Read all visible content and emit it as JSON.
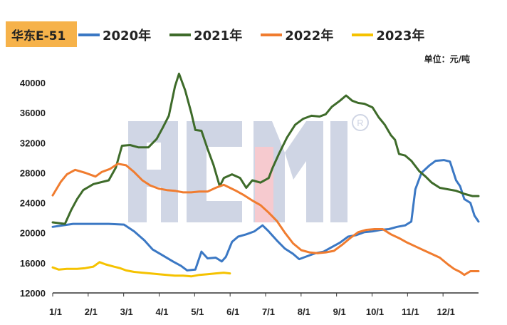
{
  "chart_data": {
    "type": "line",
    "title": "华东E-51",
    "unit_label": "单位：元/吨",
    "ylim": [
      12000,
      42000
    ],
    "yticks": [
      "40000",
      "36000",
      "32000",
      "28000",
      "24000",
      "20000",
      "16000",
      "12000"
    ],
    "xticks": [
      "1/1",
      "2/1",
      "3/1",
      "4/1",
      "5/1",
      "6/1",
      "7/1",
      "8/1",
      "9/1",
      "10/1",
      "11/1",
      "12/1"
    ],
    "watermark": "ACMI",
    "series": [
      {
        "name": "2020年",
        "color": "#3b78c4",
        "points": [
          [
            0,
            20800
          ],
          [
            20,
            21200
          ],
          [
            55,
            21200
          ],
          [
            70,
            21100
          ],
          [
            80,
            20200
          ],
          [
            90,
            19000
          ],
          [
            98,
            17800
          ],
          [
            108,
            17000
          ],
          [
            118,
            16200
          ],
          [
            126,
            15600
          ],
          [
            132,
            15000
          ],
          [
            140,
            15100
          ],
          [
            146,
            17500
          ],
          [
            152,
            16600
          ],
          [
            160,
            16700
          ],
          [
            166,
            16200
          ],
          [
            170,
            16800
          ],
          [
            176,
            18800
          ],
          [
            182,
            19500
          ],
          [
            190,
            19800
          ],
          [
            198,
            20200
          ],
          [
            206,
            21000
          ],
          [
            212,
            20200
          ],
          [
            220,
            19000
          ],
          [
            228,
            17900
          ],
          [
            236,
            17200
          ],
          [
            242,
            16500
          ],
          [
            250,
            16900
          ],
          [
            258,
            17300
          ],
          [
            266,
            17500
          ],
          [
            274,
            18100
          ],
          [
            282,
            18700
          ],
          [
            290,
            19500
          ],
          [
            298,
            19700
          ],
          [
            306,
            20100
          ],
          [
            314,
            20200
          ],
          [
            322,
            20400
          ],
          [
            330,
            20500
          ],
          [
            338,
            20800
          ],
          [
            346,
            21000
          ],
          [
            352,
            21500
          ],
          [
            356,
            25800
          ],
          [
            362,
            28000
          ],
          [
            370,
            29000
          ],
          [
            376,
            29600
          ],
          [
            384,
            29700
          ],
          [
            390,
            29500
          ],
          [
            396,
            27000
          ],
          [
            400,
            26200
          ],
          [
            404,
            24500
          ],
          [
            410,
            24000
          ],
          [
            414,
            22300
          ],
          [
            418,
            21500
          ]
        ]
      },
      {
        "name": "2021年",
        "color": "#3e6b2a",
        "points": [
          [
            0,
            21400
          ],
          [
            12,
            21200
          ],
          [
            18,
            23000
          ],
          [
            24,
            24500
          ],
          [
            30,
            25700
          ],
          [
            40,
            26500
          ],
          [
            55,
            27000
          ],
          [
            62,
            28700
          ],
          [
            68,
            31600
          ],
          [
            76,
            31700
          ],
          [
            84,
            31400
          ],
          [
            94,
            31400
          ],
          [
            102,
            32500
          ],
          [
            108,
            34000
          ],
          [
            114,
            35600
          ],
          [
            120,
            39500
          ],
          [
            124,
            41200
          ],
          [
            130,
            39000
          ],
          [
            136,
            36000
          ],
          [
            140,
            33700
          ],
          [
            146,
            33600
          ],
          [
            152,
            31200
          ],
          [
            158,
            29000
          ],
          [
            164,
            26200
          ],
          [
            168,
            27300
          ],
          [
            176,
            27800
          ],
          [
            184,
            27300
          ],
          [
            190,
            26000
          ],
          [
            196,
            27000
          ],
          [
            204,
            26700
          ],
          [
            212,
            27300
          ],
          [
            216,
            28700
          ],
          [
            222,
            30500
          ],
          [
            230,
            32700
          ],
          [
            238,
            34400
          ],
          [
            246,
            35200
          ],
          [
            254,
            35600
          ],
          [
            262,
            35500
          ],
          [
            268,
            35800
          ],
          [
            274,
            36800
          ],
          [
            282,
            37600
          ],
          [
            288,
            38300
          ],
          [
            294,
            37600
          ],
          [
            300,
            37300
          ],
          [
            306,
            37200
          ],
          [
            314,
            36700
          ],
          [
            320,
            35400
          ],
          [
            326,
            34400
          ],
          [
            332,
            33000
          ],
          [
            336,
            32400
          ],
          [
            340,
            30500
          ],
          [
            346,
            30300
          ],
          [
            352,
            29600
          ],
          [
            360,
            28200
          ],
          [
            366,
            27500
          ],
          [
            372,
            26700
          ],
          [
            380,
            26000
          ],
          [
            388,
            25800
          ],
          [
            396,
            25600
          ],
          [
            404,
            25200
          ],
          [
            412,
            24900
          ],
          [
            418,
            24900
          ]
        ]
      },
      {
        "name": "2022年",
        "color": "#f07c2f",
        "points": [
          [
            0,
            25000
          ],
          [
            8,
            26800
          ],
          [
            14,
            27800
          ],
          [
            22,
            28400
          ],
          [
            32,
            28000
          ],
          [
            42,
            27500
          ],
          [
            48,
            28100
          ],
          [
            56,
            28500
          ],
          [
            64,
            29200
          ],
          [
            72,
            29000
          ],
          [
            80,
            28100
          ],
          [
            88,
            27000
          ],
          [
            96,
            26300
          ],
          [
            104,
            25900
          ],
          [
            112,
            25700
          ],
          [
            120,
            25600
          ],
          [
            128,
            25400
          ],
          [
            136,
            25400
          ],
          [
            144,
            25500
          ],
          [
            152,
            25500
          ],
          [
            160,
            26000
          ],
          [
            168,
            26400
          ],
          [
            174,
            26000
          ],
          [
            180,
            25600
          ],
          [
            188,
            25000
          ],
          [
            196,
            24300
          ],
          [
            204,
            23700
          ],
          [
            212,
            22700
          ],
          [
            220,
            21600
          ],
          [
            228,
            20000
          ],
          [
            236,
            18600
          ],
          [
            244,
            17700
          ],
          [
            252,
            17400
          ],
          [
            260,
            17300
          ],
          [
            268,
            17400
          ],
          [
            276,
            17600
          ],
          [
            284,
            18400
          ],
          [
            292,
            19300
          ],
          [
            300,
            20100
          ],
          [
            308,
            20400
          ],
          [
            316,
            20500
          ],
          [
            324,
            20500
          ],
          [
            332,
            19800
          ],
          [
            340,
            19300
          ],
          [
            348,
            18700
          ],
          [
            356,
            18200
          ],
          [
            364,
            17700
          ],
          [
            372,
            17200
          ],
          [
            380,
            16700
          ],
          [
            388,
            15800
          ],
          [
            394,
            15200
          ],
          [
            400,
            14800
          ],
          [
            404,
            14400
          ],
          [
            410,
            14900
          ],
          [
            418,
            14900
          ]
        ]
      },
      {
        "name": "2023年",
        "color": "#f5c200",
        "points": [
          [
            0,
            15400
          ],
          [
            6,
            15100
          ],
          [
            14,
            15200
          ],
          [
            24,
            15200
          ],
          [
            32,
            15300
          ],
          [
            40,
            15500
          ],
          [
            46,
            16100
          ],
          [
            52,
            15800
          ],
          [
            60,
            15500
          ],
          [
            66,
            15300
          ],
          [
            72,
            15000
          ],
          [
            80,
            14800
          ],
          [
            88,
            14700
          ],
          [
            96,
            14600
          ],
          [
            104,
            14500
          ],
          [
            112,
            14400
          ],
          [
            120,
            14300
          ],
          [
            128,
            14300
          ],
          [
            136,
            14200
          ],
          [
            144,
            14400
          ],
          [
            152,
            14500
          ],
          [
            160,
            14600
          ],
          [
            168,
            14700
          ],
          [
            174,
            14600
          ]
        ]
      }
    ]
  }
}
